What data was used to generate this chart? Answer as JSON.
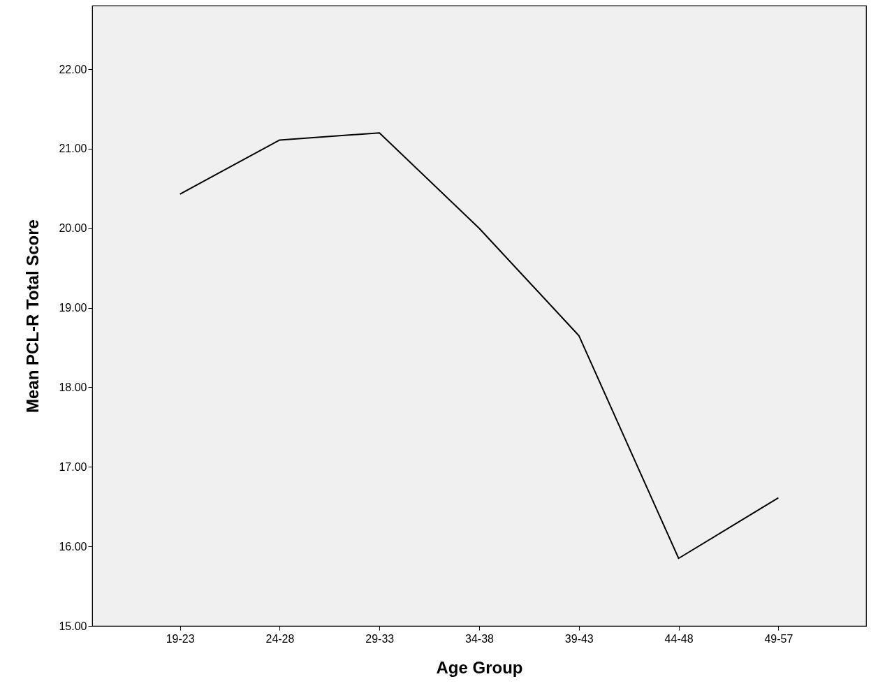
{
  "chart_data": {
    "type": "line",
    "xlabel": "Age Group",
    "ylabel": "Mean PCL-R Total Score",
    "categories": [
      "19-23",
      "24-28",
      "29-33",
      "34-38",
      "39-43",
      "44-48",
      "49-57"
    ],
    "series": [
      {
        "color": "#000000",
        "values": [
          20.43,
          21.11,
          21.2,
          20.0,
          18.65,
          15.85,
          16.61
        ]
      }
    ],
    "ylim": [
      15,
      22.8
    ],
    "yticks": [
      {
        "value": 15,
        "label": "15.00"
      },
      {
        "value": 16,
        "label": "16.00"
      },
      {
        "value": 17,
        "label": "17.00"
      },
      {
        "value": 18,
        "label": "18.00"
      },
      {
        "value": 19,
        "label": "19.00"
      },
      {
        "value": 20,
        "label": "20.00"
      },
      {
        "value": 21,
        "label": "21.00"
      },
      {
        "value": 22,
        "label": "22.00"
      }
    ],
    "grid": false,
    "marker": "none",
    "line_style": "solid"
  }
}
